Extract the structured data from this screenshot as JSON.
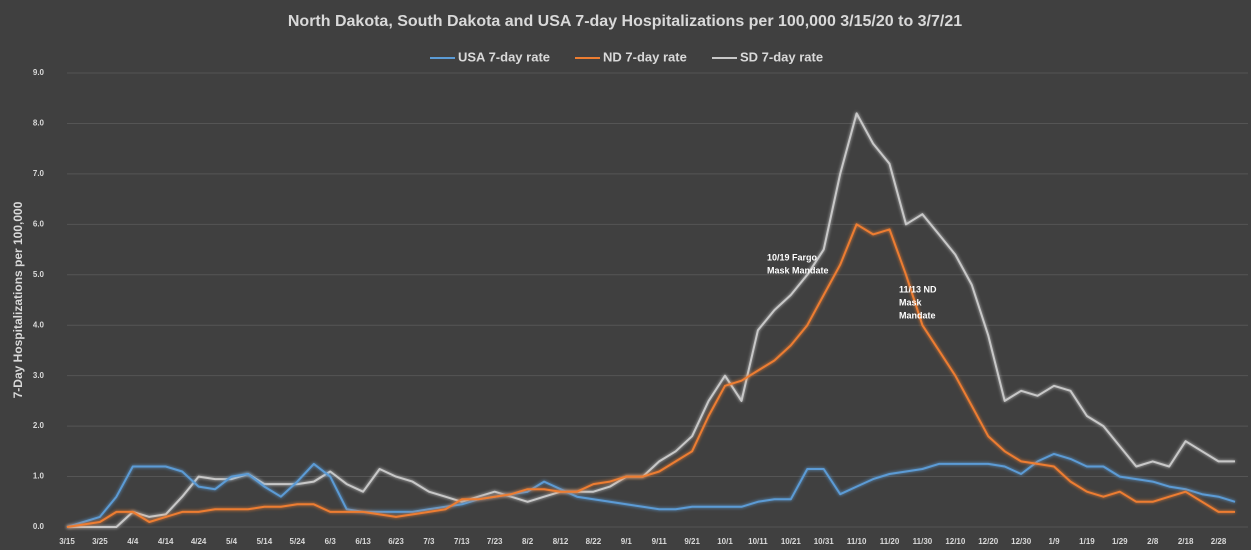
{
  "chart_data": {
    "type": "line",
    "title": "North Dakota, South Dakota and USA 7-day Hospitalizations per 100,000 3/15/20 to 3/7/21",
    "y_label": "7-Day Hospitalizations per 100,000",
    "categories": [
      "3/15",
      null,
      "3/25",
      null,
      "4/4",
      null,
      "4/14",
      null,
      "4/24",
      null,
      "5/4",
      null,
      "5/14",
      null,
      "5/24",
      null,
      "6/3",
      null,
      "6/13",
      null,
      "6/23",
      null,
      "7/3",
      null,
      "7/13",
      null,
      "7/23",
      null,
      "8/2",
      null,
      "8/12",
      null,
      "8/22",
      null,
      "9/1",
      null,
      "9/11",
      null,
      "9/21",
      null,
      "10/1",
      null,
      "10/11",
      null,
      "10/21",
      null,
      "10/31",
      null,
      "11/10",
      null,
      "11/20",
      null,
      "11/30",
      null,
      "12/10",
      null,
      "12/20",
      null,
      "12/30",
      null,
      "1/9",
      null,
      "1/19",
      null,
      "1/29",
      null,
      "2/8",
      null,
      "2/18",
      null,
      "2/28",
      null
    ],
    "series": [
      {
        "name": "USA 7-day rate",
        "color": "#5b9bd5",
        "values": [
          0.0,
          0.1,
          0.2,
          0.6,
          1.2,
          1.2,
          1.2,
          1.1,
          0.8,
          0.75,
          1.0,
          1.05,
          0.8,
          0.6,
          0.9,
          1.25,
          1.0,
          0.35,
          0.3,
          0.3,
          0.3,
          0.3,
          0.35,
          0.4,
          0.45,
          0.55,
          0.6,
          0.65,
          0.7,
          0.9,
          0.75,
          0.6,
          0.55,
          0.5,
          0.45,
          0.4,
          0.35,
          0.35,
          0.4,
          0.4,
          0.4,
          0.4,
          0.5,
          0.55,
          0.55,
          1.15,
          1.15,
          0.65,
          0.8,
          0.95,
          1.05,
          1.1,
          1.15,
          1.25,
          1.25,
          1.25,
          1.25,
          1.2,
          1.05,
          1.3,
          1.45,
          1.35,
          1.2,
          1.2,
          1.0,
          0.95,
          0.9,
          0.8,
          0.75,
          0.65,
          0.6,
          0.5
        ]
      },
      {
        "name": "ND 7-day rate",
        "color": "#ed7d31",
        "values": [
          0.0,
          0.05,
          0.1,
          0.3,
          0.3,
          0.1,
          0.2,
          0.3,
          0.3,
          0.35,
          0.35,
          0.35,
          0.4,
          0.4,
          0.45,
          0.45,
          0.3,
          0.3,
          0.3,
          0.25,
          0.2,
          0.25,
          0.3,
          0.35,
          0.55,
          0.55,
          0.6,
          0.65,
          0.75,
          0.75,
          0.7,
          0.7,
          0.85,
          0.9,
          1.0,
          1.0,
          1.1,
          1.3,
          1.5,
          2.2,
          2.8,
          2.9,
          3.1,
          3.3,
          3.6,
          4.0,
          4.6,
          5.2,
          6.0,
          5.8,
          5.9,
          5.0,
          4.0,
          3.5,
          3.0,
          2.4,
          1.8,
          1.5,
          1.3,
          1.25,
          1.2,
          0.9,
          0.7,
          0.6,
          0.7,
          0.5,
          0.5,
          0.6,
          0.7,
          0.5,
          0.3,
          0.3
        ]
      },
      {
        "name": "SD 7-day rate",
        "color": "#c8c8c8",
        "values": [
          0.0,
          0.0,
          0.0,
          0.0,
          0.3,
          0.2,
          0.25,
          0.6,
          1.0,
          0.95,
          0.95,
          1.05,
          0.85,
          0.85,
          0.85,
          0.9,
          1.1,
          0.85,
          0.7,
          1.15,
          1.0,
          0.9,
          0.7,
          0.6,
          0.5,
          0.6,
          0.7,
          0.6,
          0.5,
          0.6,
          0.7,
          0.7,
          0.7,
          0.8,
          1.0,
          1.0,
          1.3,
          1.5,
          1.8,
          2.5,
          3.0,
          2.5,
          3.9,
          4.3,
          4.6,
          5.0,
          5.5,
          7.0,
          8.2,
          7.6,
          7.2,
          6.0,
          6.2,
          5.8,
          5.4,
          4.8,
          3.8,
          2.5,
          2.7,
          2.6,
          2.8,
          2.7,
          2.2,
          2.0,
          1.6,
          1.2,
          1.3,
          1.2,
          1.7,
          1.5,
          1.3,
          1.3
        ]
      }
    ],
    "ylim": [
      0,
      9
    ],
    "yticks": [
      {
        "value": 0,
        "label": "0.0"
      },
      {
        "value": 1,
        "label": "1.0"
      },
      {
        "value": 2,
        "label": "2.0"
      },
      {
        "value": 3,
        "label": "3.0"
      },
      {
        "value": 4,
        "label": "4.0"
      },
      {
        "value": 5,
        "label": "5.0"
      },
      {
        "value": 6,
        "label": "6.0"
      },
      {
        "value": 7,
        "label": "7.0"
      },
      {
        "value": 8,
        "label": "8.0"
      },
      {
        "value": 9,
        "label": "9.0"
      }
    ],
    "grid": true,
    "legend": "top",
    "annotations": [
      {
        "lines": [
          "10/19 Fargo",
          "Mask Mandate"
        ]
      },
      {
        "lines": [
          "11/13 ND",
          "Mask",
          "Mandate"
        ]
      }
    ]
  }
}
